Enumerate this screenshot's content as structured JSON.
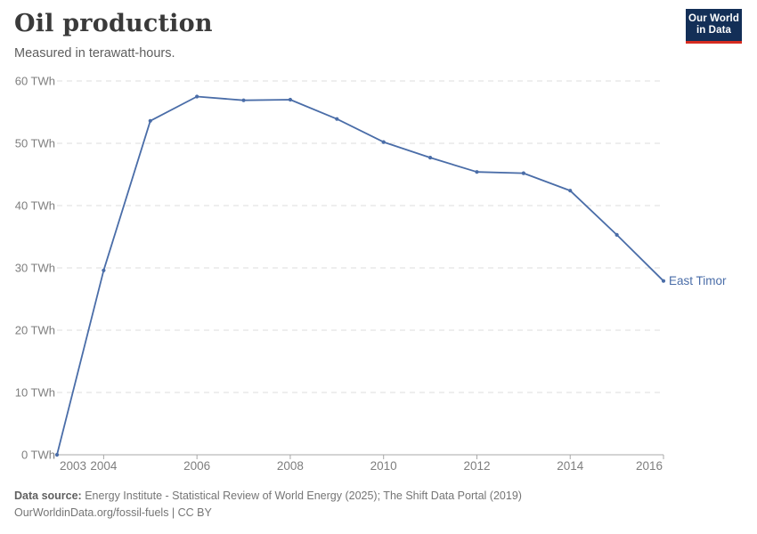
{
  "header": {
    "title": "Oil production",
    "subtitle": "Measured in terawatt-hours.",
    "logo": {
      "line1": "Our World",
      "line2": "in Data"
    }
  },
  "chart_data": {
    "type": "line",
    "title": "Oil production",
    "ylabel": "",
    "xlabel": "",
    "unit": "TWh",
    "x": [
      2003,
      2004,
      2005,
      2006,
      2007,
      2008,
      2009,
      2010,
      2011,
      2012,
      2013,
      2014,
      2015,
      2016
    ],
    "series": [
      {
        "name": "East Timor",
        "values": [
          0,
          29.6,
          53.6,
          57.5,
          56.9,
          57.0,
          53.9,
          50.2,
          47.7,
          45.4,
          45.2,
          42.4,
          35.3,
          27.9
        ]
      }
    ],
    "ylim": [
      0,
      60
    ],
    "ytick_values": [
      0,
      10,
      20,
      30,
      40,
      50,
      60
    ],
    "ytick_labels": [
      "0 TWh",
      "10 TWh",
      "20 TWh",
      "30 TWh",
      "40 TWh",
      "50 TWh",
      "60 TWh"
    ],
    "xtick_values": [
      2003,
      2004,
      2006,
      2008,
      2010,
      2012,
      2014,
      2016
    ],
    "xtick_labels": [
      "2003",
      "2004",
      "2006",
      "2008",
      "2010",
      "2012",
      "2014",
      "2016"
    ],
    "grid": "horizontal-dashed",
    "legend_position": "end-of-line"
  },
  "footer": {
    "source_label": "Data source:",
    "source_text": " Energy Institute - Statistical Review of World Energy (2025); The Shift Data Portal (2019)",
    "license_line": "OurWorldinData.org/fossil-fuels | CC BY"
  },
  "colors": {
    "line": "#4a6da8",
    "entity_label": "#4a6da8",
    "logo_bg": "#132f57",
    "logo_red": "#d62b20",
    "grid": "#dedede",
    "axis": "#a8a8a8",
    "tick_text": "#7e7e7e"
  }
}
